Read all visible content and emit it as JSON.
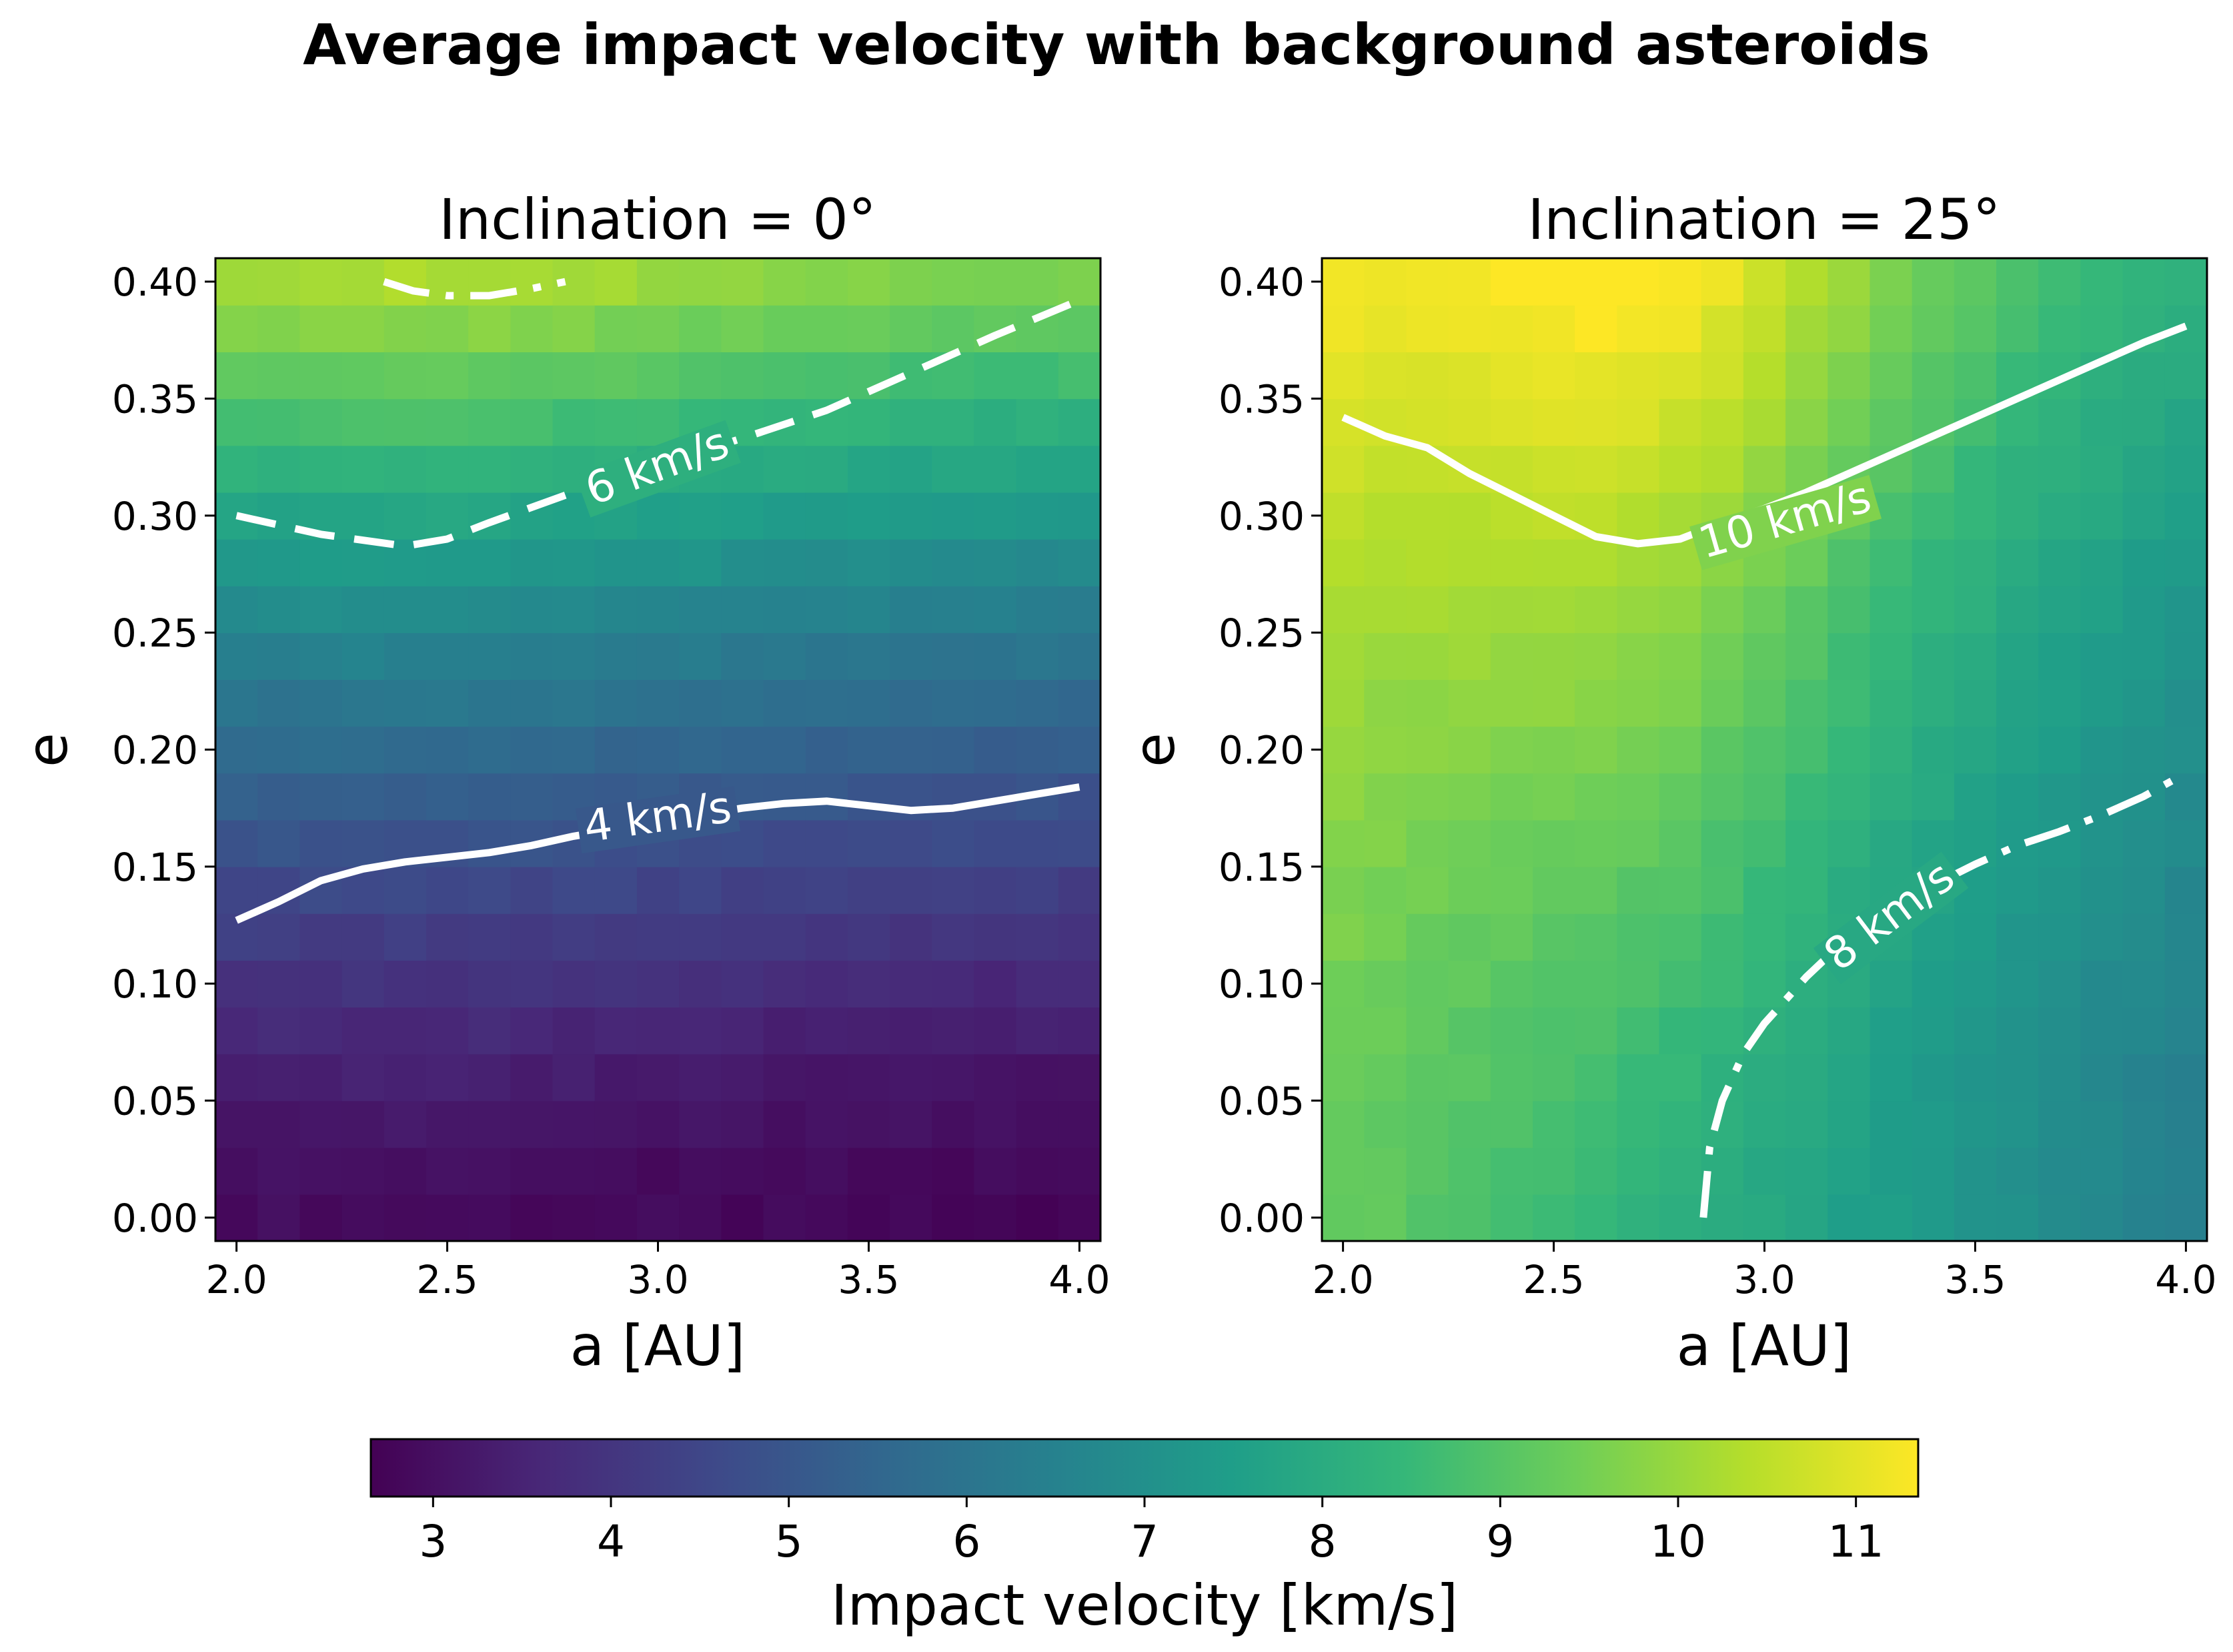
{
  "figure": {
    "title": "Average impact velocity with background asteroids"
  },
  "colorbar": {
    "label": "Impact velocity [km/s]",
    "range": [
      2.65,
      11.35
    ],
    "ticks": [
      3,
      4,
      5,
      6,
      7,
      8,
      9,
      10,
      11
    ],
    "tick_labels": [
      "3",
      "4",
      "5",
      "6",
      "7",
      "8",
      "9",
      "10",
      "11"
    ],
    "colormap": "viridis",
    "stops": [
      "#440154",
      "#482878",
      "#3e4989",
      "#31688e",
      "#26828e",
      "#1f9e89",
      "#35b779",
      "#6ece58",
      "#b5de2b",
      "#fde725"
    ]
  },
  "chart_data": [
    {
      "type": "heatmap",
      "title": "Inclination = 0°",
      "xlabel": "a [AU]",
      "ylabel": "e",
      "xlim": [
        1.95,
        4.05
      ],
      "ylim": [
        -0.01,
        0.41
      ],
      "xticks": [
        2.0,
        2.5,
        3.0,
        3.5,
        4.0
      ],
      "xtick_labels": [
        "2.0",
        "2.5",
        "3.0",
        "3.5",
        "4.0"
      ],
      "yticks": [
        0.0,
        0.05,
        0.1,
        0.15,
        0.2,
        0.25,
        0.3,
        0.35,
        0.4
      ],
      "ytick_labels": [
        "0.00",
        "0.05",
        "0.10",
        "0.15",
        "0.20",
        "0.25",
        "0.30",
        "0.35",
        "0.40"
      ],
      "grid": {
        "a_min": 1.95,
        "a_max": 4.05,
        "a_cells": 21,
        "e_min": -0.01,
        "e_max": 0.41,
        "e_cells": 21
      },
      "field": {
        "base": 2.95,
        "e_coeff": 26,
        "e_power": 1.45,
        "a_peak": 2.5,
        "a_peak_amp": 0.5,
        "a_peak_width": 0.7,
        "a_slope": -0.12,
        "noise": 0.12
      },
      "contours": [
        {
          "label": "4 km/s",
          "level": 4,
          "style": "solid",
          "label_at": [
            3.0,
            0.17
          ],
          "label_rotation": -8,
          "points": [
            [
              2.0,
              0.127
            ],
            [
              2.1,
              0.135
            ],
            [
              2.2,
              0.144
            ],
            [
              2.3,
              0.149
            ],
            [
              2.4,
              0.152
            ],
            [
              2.5,
              0.154
            ],
            [
              2.6,
              0.156
            ],
            [
              2.7,
              0.159
            ],
            [
              2.8,
              0.163
            ],
            [
              2.9,
              0.166
            ],
            [
              3.0,
              0.169
            ],
            [
              3.1,
              0.172
            ],
            [
              3.2,
              0.175
            ],
            [
              3.3,
              0.177
            ],
            [
              3.4,
              0.178
            ],
            [
              3.5,
              0.176
            ],
            [
              3.6,
              0.174
            ],
            [
              3.7,
              0.175
            ],
            [
              3.8,
              0.178
            ],
            [
              3.9,
              0.181
            ],
            [
              4.0,
              0.184
            ]
          ]
        },
        {
          "label": "6 km/s",
          "level": 6,
          "style": "dashed",
          "label_at": [
            3.0,
            0.32
          ],
          "label_rotation": -20,
          "points": [
            [
              2.0,
              0.3
            ],
            [
              2.2,
              0.292
            ],
            [
              2.4,
              0.287
            ],
            [
              2.5,
              0.29
            ],
            [
              2.6,
              0.297
            ],
            [
              2.8,
              0.31
            ],
            [
              3.0,
              0.322
            ],
            [
              3.2,
              0.333
            ],
            [
              3.4,
              0.345
            ],
            [
              3.6,
              0.361
            ],
            [
              3.8,
              0.377
            ],
            [
              4.0,
              0.392
            ]
          ]
        },
        {
          "label": "",
          "level": 7,
          "style": "dashdot",
          "points": [
            [
              2.35,
              0.4
            ],
            [
              2.42,
              0.396
            ],
            [
              2.5,
              0.394
            ],
            [
              2.6,
              0.394
            ],
            [
              2.7,
              0.397
            ],
            [
              2.78,
              0.4
            ]
          ]
        }
      ]
    },
    {
      "type": "heatmap",
      "title": "Inclination = 25°",
      "xlabel": "a [AU]",
      "ylabel": "e",
      "xlim": [
        1.95,
        4.05
      ],
      "ylim": [
        -0.01,
        0.41
      ],
      "xticks": [
        2.0,
        2.5,
        3.0,
        3.5,
        4.0
      ],
      "xtick_labels": [
        "2.0",
        "2.5",
        "3.0",
        "3.5",
        "4.0"
      ],
      "yticks": [
        0.0,
        0.05,
        0.1,
        0.15,
        0.2,
        0.25,
        0.3,
        0.35,
        0.4
      ],
      "ytick_labels": [
        "0.00",
        "0.05",
        "0.10",
        "0.15",
        "0.20",
        "0.25",
        "0.30",
        "0.35",
        "0.40"
      ],
      "grid": {
        "a_min": 1.95,
        "a_max": 4.05,
        "a_cells": 21,
        "e_min": -0.01,
        "e_max": 0.41,
        "e_cells": 21
      },
      "field": {
        "base": 9.3,
        "a_slope": -1.45,
        "e_coeff": 9,
        "e_power": 1.75,
        "a_peak": 2.75,
        "a_peak_amp": 1.4,
        "a_peak_width": 0.5,
        "noise": 0.1
      },
      "contours": [
        {
          "label": "10 km/s",
          "level": 10,
          "style": "solid",
          "label_at": [
            3.05,
            0.297
          ],
          "label_rotation": -16,
          "points": [
            [
              2.0,
              0.342
            ],
            [
              2.1,
              0.334
            ],
            [
              2.2,
              0.329
            ],
            [
              2.3,
              0.318
            ],
            [
              2.4,
              0.309
            ],
            [
              2.5,
              0.3
            ],
            [
              2.6,
              0.291
            ],
            [
              2.7,
              0.288
            ],
            [
              2.8,
              0.29
            ],
            [
              2.9,
              0.297
            ],
            [
              3.0,
              0.303
            ],
            [
              3.1,
              0.31
            ],
            [
              3.2,
              0.318
            ],
            [
              3.3,
              0.326
            ],
            [
              3.4,
              0.334
            ],
            [
              3.5,
              0.342
            ],
            [
              3.6,
              0.35
            ],
            [
              3.7,
              0.358
            ],
            [
              3.8,
              0.366
            ],
            [
              3.9,
              0.374
            ],
            [
              4.0,
              0.381
            ]
          ]
        },
        {
          "label": "8 km/s",
          "level": 8,
          "style": "dashdot",
          "label_at": [
            3.3,
            0.128
          ],
          "label_rotation": -37,
          "points": [
            [
              2.855,
              0.0
            ],
            [
              2.87,
              0.03
            ],
            [
              2.9,
              0.05
            ],
            [
              2.95,
              0.07
            ],
            [
              3.0,
              0.083
            ],
            [
              3.05,
              0.093
            ],
            [
              3.1,
              0.103
            ],
            [
              3.2,
              0.12
            ],
            [
              3.3,
              0.131
            ],
            [
              3.4,
              0.142
            ],
            [
              3.5,
              0.151
            ],
            [
              3.6,
              0.159
            ],
            [
              3.7,
              0.165
            ],
            [
              3.8,
              0.172
            ],
            [
              3.9,
              0.18
            ],
            [
              4.0,
              0.19
            ]
          ]
        }
      ]
    }
  ]
}
